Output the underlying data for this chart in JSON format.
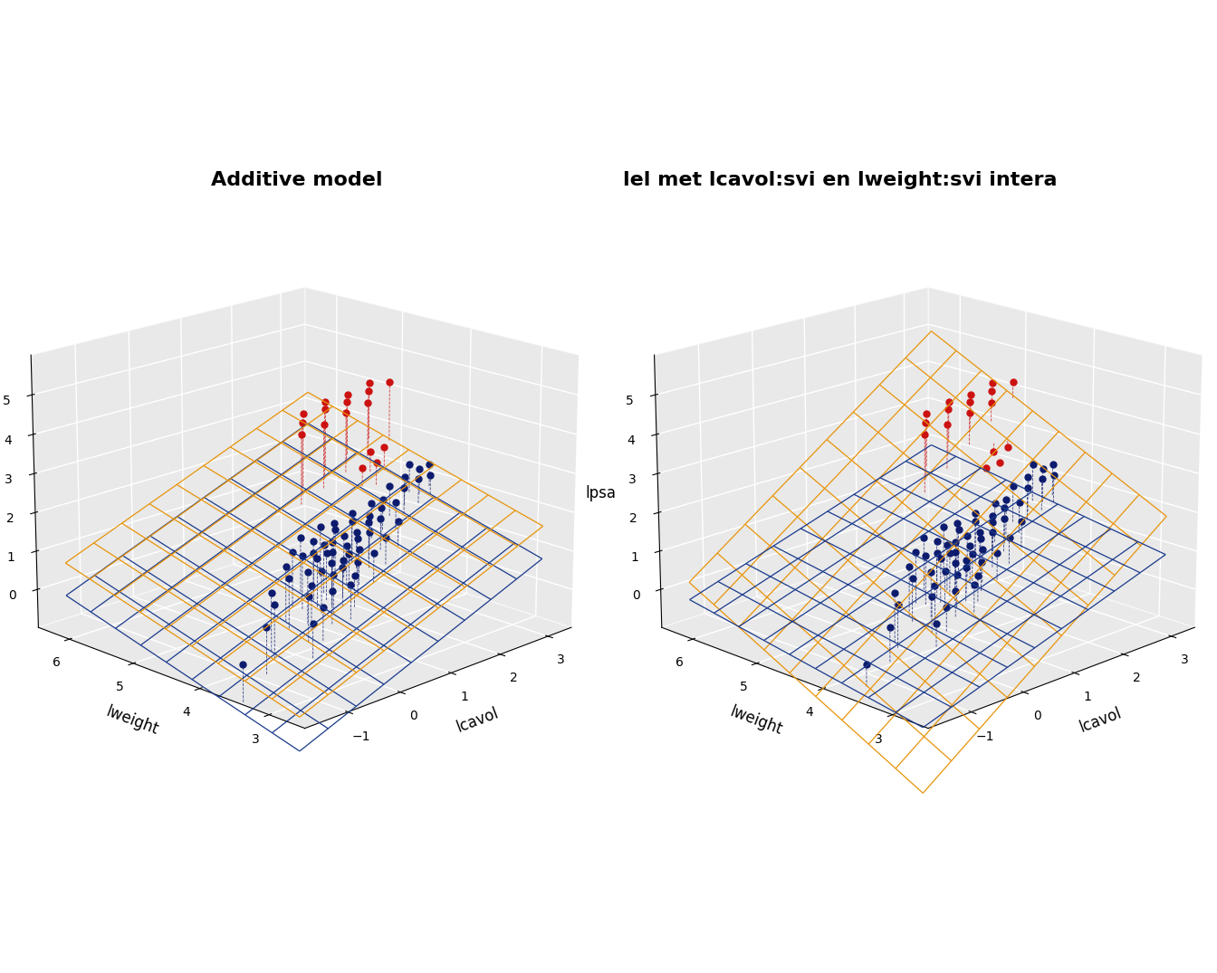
{
  "title_left": "Additive model",
  "title_right": "lel met lcavol:svi en lweight:svi intera",
  "xlabel": "lcavol",
  "ylabel": "lweight",
  "zlabel": "lpsa",
  "xlim": [
    -1.8,
    3.5
  ],
  "ylim": [
    2.5,
    6.5
  ],
  "zlim": [
    -1.0,
    6.0
  ],
  "xticks": [
    -1,
    0,
    1,
    2,
    3
  ],
  "yticks": [
    3,
    4,
    5,
    6
  ],
  "zticks": [
    0,
    1,
    2,
    3,
    4,
    5
  ],
  "plane_color_blue": "#1a3a8c",
  "plane_color_orange": "#e8940a",
  "dot_color_blue": "#0d1b6e",
  "dot_color_red": "#cc1111",
  "pane_color": "#d4d4d4",
  "pane_edge_color": "white",
  "additive": {
    "intercept": -2.5,
    "b_lcavol": 0.55,
    "b_lweight": 0.5,
    "b_svi": 0.85
  },
  "interaction": {
    "intercept": -1.5,
    "b_lcavol": 0.45,
    "b_lweight": 0.3,
    "b_svi": -2.5,
    "b_lcavol_svi": 0.55,
    "b_lweight_svi": 0.6
  },
  "scatter_data": {
    "lcavol": [
      -1.35,
      -0.78,
      -0.5,
      -0.43,
      -0.16,
      0.02,
      0.04,
      0.11,
      0.17,
      0.21,
      0.27,
      0.37,
      0.43,
      0.48,
      0.54,
      0.59,
      0.64,
      0.65,
      0.66,
      0.71,
      0.74,
      0.77,
      0.78,
      0.82,
      0.85,
      0.88,
      0.92,
      0.96,
      1.02,
      1.05,
      1.08,
      1.12,
      1.17,
      1.21,
      1.25,
      1.28,
      1.32,
      1.38,
      1.44,
      1.5,
      1.55,
      1.62,
      1.68,
      1.75,
      1.82,
      1.9,
      1.99,
      2.08,
      2.14,
      2.21,
      2.31,
      2.44,
      2.59,
      2.75,
      2.9,
      3.05,
      3.14,
      3.21,
      3.3,
      3.42,
      2.3,
      2.45,
      2.6,
      2.75,
      1.47,
      1.62,
      1.77,
      1.92,
      2.07,
      2.22,
      2.37,
      2.52,
      2.67,
      2.82,
      2.97,
      3.12,
      3.27
    ],
    "lweight": [
      3.72,
      3.82,
      3.92,
      4.02,
      3.62,
      3.82,
      4.12,
      4.22,
      3.72,
      3.92,
      4.02,
      4.32,
      4.22,
      3.82,
      4.02,
      4.12,
      3.92,
      4.22,
      4.42,
      3.72,
      4.02,
      4.12,
      4.32,
      3.92,
      4.22,
      4.12,
      3.82,
      4.02,
      4.22,
      4.42,
      4.02,
      3.92,
      4.12,
      4.32,
      4.22,
      4.02,
      4.42,
      4.12,
      3.92,
      4.22,
      4.32,
      4.12,
      4.42,
      4.22,
      4.02,
      4.32,
      4.22,
      4.42,
      4.32,
      4.12,
      4.42,
      4.32,
      4.52,
      4.42,
      4.52,
      4.42,
      4.62,
      4.52,
      4.42,
      4.52,
      4.72,
      4.62,
      4.82,
      4.72,
      5.02,
      5.12,
      5.22,
      5.02,
      5.12,
      5.22,
      5.02,
      5.12,
      5.22,
      5.02,
      5.12,
      5.22,
      5.02
    ],
    "lpsa": [
      -0.43,
      0.17,
      0.55,
      0.76,
      0.1,
      0.6,
      0.88,
      1.09,
      0.31,
      0.73,
      0.98,
      1.28,
      1.21,
      0.53,
      0.9,
      1.13,
      0.82,
      1.19,
      1.47,
      0.64,
      1.01,
      1.2,
      1.39,
      0.93,
      1.31,
      1.18,
      0.73,
      0.99,
      1.31,
      1.59,
      1.11,
      0.93,
      1.22,
      1.51,
      1.38,
      1.13,
      1.57,
      1.31,
      1.02,
      1.38,
      1.57,
      1.38,
      1.69,
      1.52,
      1.21,
      1.58,
      1.52,
      1.78,
      1.68,
      1.42,
      1.77,
      1.71,
      1.98,
      1.91,
      2.08,
      2.02,
      2.28,
      2.19,
      2.02,
      2.22,
      2.47,
      2.59,
      2.72,
      2.83,
      3.51,
      3.71,
      3.84,
      3.6,
      3.89,
      3.98,
      3.73,
      3.9,
      4.01,
      3.82,
      4.03,
      4.14,
      4.22
    ],
    "svi": [
      0,
      0,
      0,
      0,
      0,
      0,
      0,
      0,
      0,
      0,
      0,
      0,
      0,
      0,
      0,
      0,
      0,
      0,
      0,
      0,
      0,
      0,
      0,
      0,
      0,
      0,
      0,
      0,
      0,
      0,
      0,
      0,
      0,
      0,
      0,
      0,
      0,
      0,
      0,
      0,
      0,
      0,
      0,
      0,
      0,
      0,
      0,
      0,
      0,
      0,
      0,
      0,
      0,
      0,
      0,
      0,
      0,
      0,
      0,
      0,
      1,
      1,
      1,
      1,
      1,
      1,
      1,
      1,
      1,
      1,
      1,
      1,
      1,
      1,
      1,
      1,
      1
    ]
  }
}
